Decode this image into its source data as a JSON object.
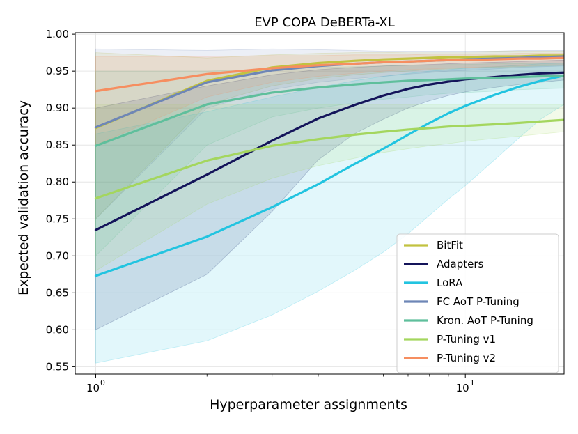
{
  "chart_data": {
    "type": "line",
    "title": "EVP COPA DeBERTa-XL",
    "xlabel": "Hyperparameter assignments",
    "ylabel": "Expected validation accuracy",
    "xscale": "log",
    "xlim": [
      0.88,
      18.5
    ],
    "ylim": [
      0.54,
      1.002
    ],
    "x": [
      1,
      2,
      3,
      4,
      5,
      6,
      7,
      8,
      9,
      10,
      12,
      14,
      16,
      18.5
    ],
    "xticks": [
      {
        "value": 1,
        "label": "10",
        "exp": "0"
      },
      {
        "value": 10,
        "label": "10",
        "exp": "1"
      }
    ],
    "yticks": [
      0.55,
      0.6,
      0.65,
      0.7,
      0.75,
      0.8,
      0.85,
      0.9,
      0.95,
      1.0
    ],
    "ytick_labels": [
      "0.55",
      "0.60",
      "0.65",
      "0.70",
      "0.75",
      "0.80",
      "0.85",
      "0.90",
      "0.95",
      "1.00"
    ],
    "grid": true,
    "legend_position": "lower-right",
    "series": [
      {
        "name": "BitFit",
        "color": "#c2c240",
        "values": [
          0.873,
          0.937,
          0.955,
          0.961,
          0.964,
          0.966,
          0.967,
          0.968,
          0.969,
          0.969,
          0.97,
          0.97,
          0.971,
          0.971
        ],
        "lower": [
          0.75,
          0.905,
          0.93,
          0.94,
          0.945,
          0.948,
          0.95,
          0.952,
          0.953,
          0.954,
          0.955,
          0.956,
          0.957,
          0.958
        ],
        "upper": [
          0.975,
          0.968,
          0.972,
          0.974,
          0.975,
          0.975,
          0.976,
          0.976,
          0.976,
          0.976,
          0.977,
          0.977,
          0.977,
          0.977
        ]
      },
      {
        "name": "Adapters",
        "color": "#14145a",
        "values": [
          0.735,
          0.81,
          0.856,
          0.886,
          0.904,
          0.917,
          0.926,
          0.932,
          0.936,
          0.939,
          0.942,
          0.945,
          0.947,
          0.948
        ],
        "lower": [
          0.6,
          0.675,
          0.76,
          0.83,
          0.865,
          0.885,
          0.9,
          0.91,
          0.917,
          0.922,
          0.928,
          0.932,
          0.935,
          0.938
        ],
        "upper": [
          0.9,
          0.93,
          0.945,
          0.952,
          0.955,
          0.957,
          0.958,
          0.959,
          0.96,
          0.961,
          0.962,
          0.963,
          0.964,
          0.965
        ]
      },
      {
        "name": "LoRA",
        "color": "#22c4e0",
        "values": [
          0.673,
          0.726,
          0.766,
          0.797,
          0.824,
          0.845,
          0.864,
          0.88,
          0.893,
          0.903,
          0.918,
          0.929,
          0.937,
          0.944
        ],
        "lower": [
          0.555,
          0.585,
          0.62,
          0.652,
          0.68,
          0.705,
          0.73,
          0.755,
          0.777,
          0.795,
          0.83,
          0.86,
          0.885,
          0.905
        ],
        "upper": [
          0.865,
          0.895,
          0.915,
          0.928,
          0.937,
          0.943,
          0.947,
          0.95,
          0.952,
          0.954,
          0.956,
          0.958,
          0.96,
          0.961
        ]
      },
      {
        "name": "FC AoT P-Tuning",
        "color": "#6e86b6",
        "values": [
          0.874,
          0.935,
          0.951,
          0.957,
          0.96,
          0.962,
          0.963,
          0.964,
          0.965,
          0.966,
          0.967,
          0.968,
          0.969,
          0.97
        ],
        "lower": [
          0.75,
          0.9,
          0.925,
          0.935,
          0.94,
          0.943,
          0.946,
          0.948,
          0.95,
          0.951,
          0.953,
          0.955,
          0.956,
          0.957
        ],
        "upper": [
          0.98,
          0.978,
          0.98,
          0.979,
          0.978,
          0.977,
          0.977,
          0.977,
          0.977,
          0.977,
          0.977,
          0.978,
          0.978,
          0.978
        ]
      },
      {
        "name": "Kron. AoT P-Tuning",
        "color": "#5fbf9c",
        "values": [
          0.849,
          0.905,
          0.921,
          0.928,
          0.932,
          0.935,
          0.937,
          0.938,
          0.939,
          0.94,
          0.941,
          0.942,
          0.943,
          0.944
        ],
        "lower": [
          0.7,
          0.85,
          0.888,
          0.9,
          0.907,
          0.912,
          0.915,
          0.918,
          0.92,
          0.921,
          0.923,
          0.925,
          0.926,
          0.927
        ],
        "upper": [
          0.95,
          0.95,
          0.953,
          0.955,
          0.956,
          0.957,
          0.958,
          0.958,
          0.959,
          0.959,
          0.96,
          0.96,
          0.961,
          0.961
        ]
      },
      {
        "name": "P-Tuning v1",
        "color": "#a4d65e",
        "values": [
          0.778,
          0.829,
          0.849,
          0.858,
          0.864,
          0.868,
          0.871,
          0.873,
          0.875,
          0.876,
          0.878,
          0.88,
          0.882,
          0.884
        ],
        "lower": [
          0.68,
          0.77,
          0.805,
          0.822,
          0.832,
          0.84,
          0.845,
          0.849,
          0.852,
          0.855,
          0.859,
          0.862,
          0.865,
          0.868
        ],
        "upper": [
          0.905,
          0.905,
          0.905,
          0.905,
          0.905,
          0.905,
          0.905,
          0.905,
          0.905,
          0.905,
          0.905,
          0.905,
          0.905,
          0.905
        ]
      },
      {
        "name": "P-Tuning v2",
        "color": "#f68e60",
        "values": [
          0.923,
          0.946,
          0.954,
          0.958,
          0.96,
          0.962,
          0.963,
          0.964,
          0.965,
          0.965,
          0.966,
          0.967,
          0.967,
          0.968
        ],
        "lower": [
          0.85,
          0.915,
          0.935,
          0.943,
          0.947,
          0.95,
          0.952,
          0.953,
          0.954,
          0.955,
          0.956,
          0.957,
          0.958,
          0.958
        ],
        "upper": [
          0.97,
          0.97,
          0.971,
          0.971,
          0.972,
          0.972,
          0.972,
          0.973,
          0.973,
          0.973,
          0.973,
          0.974,
          0.974,
          0.974
        ]
      }
    ]
  }
}
